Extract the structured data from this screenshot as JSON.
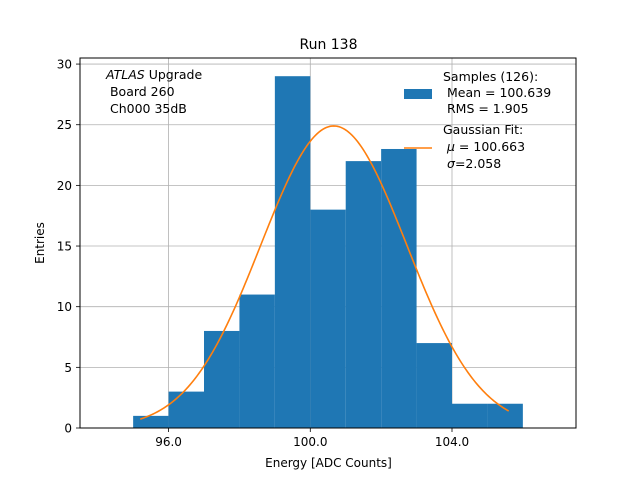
{
  "chart_data": {
    "type": "histogram",
    "title": "Run 138",
    "xlabel": "Energy [ADC Counts]",
    "ylabel": "Entries",
    "xlim": [
      93.5,
      107.5
    ],
    "ylim": [
      0,
      30.5
    ],
    "grid": true,
    "xticks": [
      96,
      100,
      104
    ],
    "xtick_labels": [
      "96.0",
      "100.0",
      "104.0"
    ],
    "yticks": [
      0,
      5,
      10,
      15,
      20,
      25,
      30
    ],
    "bins": [
      {
        "x0": 95,
        "x1": 96,
        "count": 1
      },
      {
        "x0": 96,
        "x1": 97,
        "count": 3
      },
      {
        "x0": 97,
        "x1": 98,
        "count": 8
      },
      {
        "x0": 98,
        "x1": 99,
        "count": 11
      },
      {
        "x0": 99,
        "x1": 100,
        "count": 29
      },
      {
        "x0": 100,
        "x1": 101,
        "count": 18
      },
      {
        "x0": 101,
        "x1": 102,
        "count": 22
      },
      {
        "x0": 102,
        "x1": 103,
        "count": 23
      },
      {
        "x0": 103,
        "x1": 104,
        "count": 7
      },
      {
        "x0": 104,
        "x1": 105,
        "count": 2
      },
      {
        "x0": 105,
        "x1": 106,
        "count": 2
      }
    ],
    "gaussian_fit": {
      "mu": 100.663,
      "sigma": 2.058,
      "x_range": [
        95.2,
        105.6
      ],
      "amplitude": 24.9
    },
    "colors": {
      "histogram": "#1f77b4",
      "fit": "#ff7f0e",
      "grid": "#b0b0b0"
    },
    "legend": {
      "position": "top-right",
      "samples": {
        "title": "Samples (126):",
        "mean": " Mean = 100.639",
        "rms": " RMS = 1.905"
      },
      "fit": {
        "title": "Gaussian Fit:",
        "mu_symbol": "μ",
        "mu_text": " = 100.663",
        "sigma_symbol": "σ",
        "sigma_text": "=2.058"
      }
    },
    "annotation": {
      "italic": "ATLAS",
      "line1_rest": " Upgrade",
      "line2": " Board 260",
      "line3": " Ch000 35dB"
    }
  }
}
